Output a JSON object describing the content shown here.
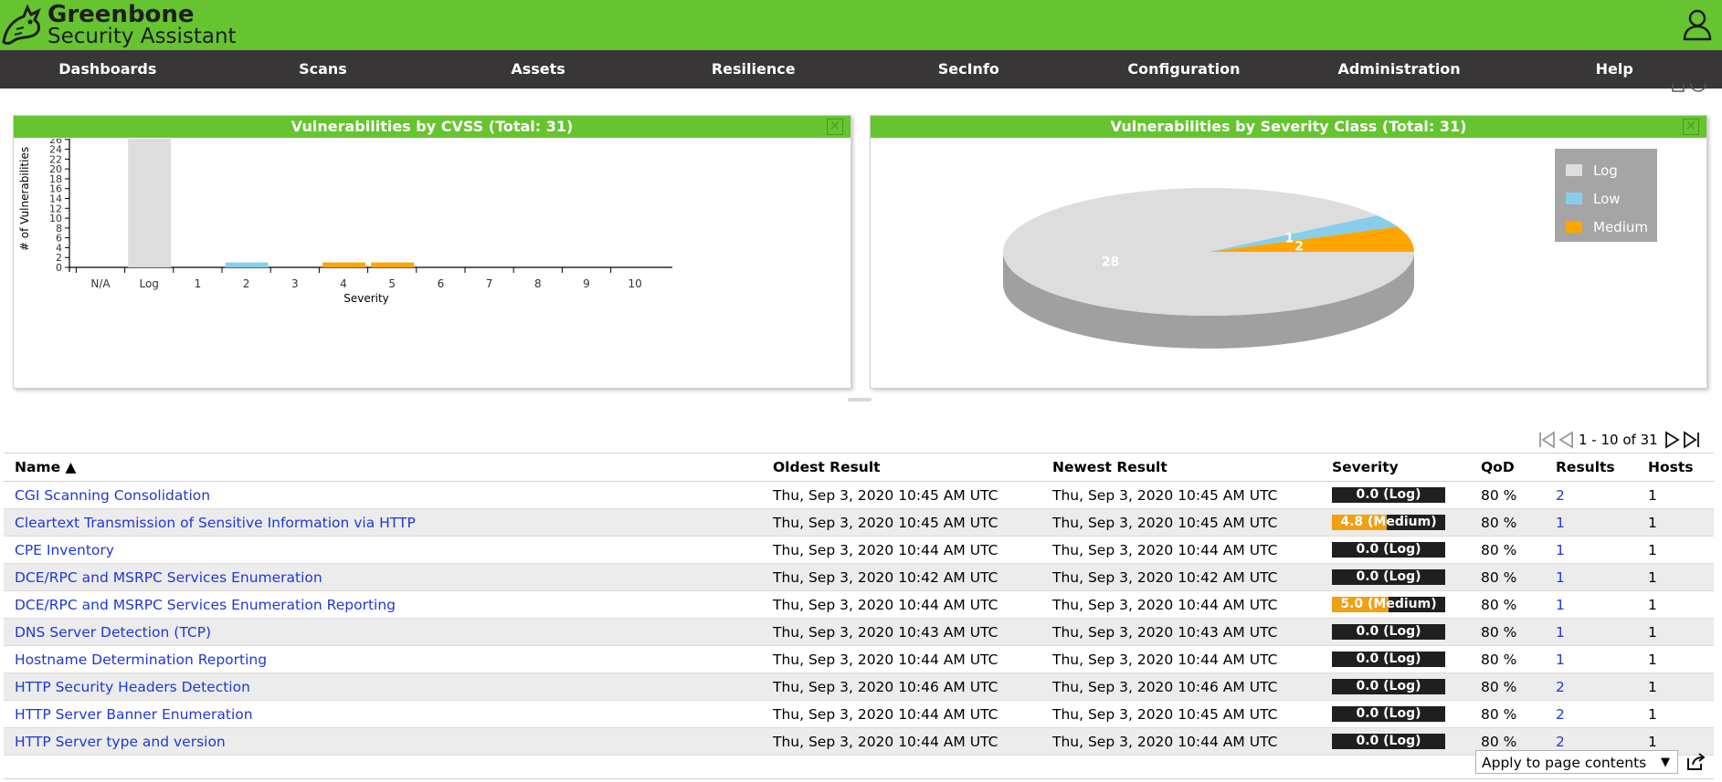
{
  "app": {
    "brand_name": "Greenbone",
    "brand_sub": "Security Assistant"
  },
  "menu": [
    "Dashboards",
    "Scans",
    "Assets",
    "Resilience",
    "SecInfo",
    "Configuration",
    "Administration",
    "Help"
  ],
  "charts": {
    "cvss_title": "Vulnerabilities by CVSS (Total: 31)",
    "pie_title": "Vulnerabilities by Severity Class (Total: 31)"
  },
  "colors": {
    "brand_green": "#66c430",
    "menu_bg": "#393637",
    "log": "#dddddd",
    "low": "#87ceeb",
    "medium": "#ffa500",
    "link": "#1f38d6"
  },
  "chart_data": [
    {
      "type": "bar",
      "title": "Vulnerabilities by CVSS (Total: 31)",
      "xlabel": "Severity",
      "ylabel": "# of Vulnerabilities",
      "categories": [
        "N/A",
        "Log",
        "1",
        "2",
        "3",
        "4",
        "5",
        "6",
        "7",
        "8",
        "9",
        "10"
      ],
      "values": [
        0,
        28,
        0,
        1,
        0,
        1,
        1,
        0,
        0,
        0,
        0,
        0
      ],
      "bar_colors": [
        "#dddddd",
        "#dddddd",
        "#87ceeb",
        "#87ceeb",
        "#87ceeb",
        "#ffa500",
        "#ffa500",
        "#ffa500",
        "#ff0000",
        "#ff0000",
        "#ff0000",
        "#ff0000"
      ],
      "yticks": [
        "0",
        "2",
        "4",
        "6",
        "8",
        "10",
        "12",
        "14",
        "16",
        "18",
        "20",
        "22",
        "24",
        "26",
        "28"
      ],
      "ylim": [
        0,
        28
      ]
    },
    {
      "type": "pie",
      "title": "Vulnerabilities by Severity Class (Total: 31)",
      "slices": [
        {
          "label": "Log",
          "value": 28,
          "color": "#dddddd"
        },
        {
          "label": "Low",
          "value": 1,
          "color": "#87ceeb"
        },
        {
          "label": "Medium",
          "value": 2,
          "color": "#ffa500"
        }
      ],
      "legend": "top-right"
    }
  ],
  "pagination": {
    "text": "1 - 10 of 31"
  },
  "table": {
    "headers": {
      "name": "Name ▲",
      "oldest": "Oldest Result",
      "newest": "Newest Result",
      "severity": "Severity",
      "qod": "QoD",
      "results": "Results",
      "hosts": "Hosts"
    },
    "rows": [
      {
        "name": "CGI Scanning Consolidation",
        "oldest": "Thu, Sep 3, 2020 10:45 AM UTC",
        "newest": "Thu, Sep 3, 2020 10:45 AM UTC",
        "severity": "0.0 (Log)",
        "severity_fraction": 0.0,
        "qod": "80 %",
        "results": "2",
        "hosts": "1"
      },
      {
        "name": "Cleartext Transmission of Sensitive Information via HTTP",
        "oldest": "Thu, Sep 3, 2020 10:45 AM UTC",
        "newest": "Thu, Sep 3, 2020 10:45 AM UTC",
        "severity": "4.8 (Medium)",
        "severity_fraction": 0.48,
        "qod": "80 %",
        "results": "1",
        "hosts": "1"
      },
      {
        "name": "CPE Inventory",
        "oldest": "Thu, Sep 3, 2020 10:44 AM UTC",
        "newest": "Thu, Sep 3, 2020 10:44 AM UTC",
        "severity": "0.0 (Log)",
        "severity_fraction": 0.0,
        "qod": "80 %",
        "results": "1",
        "hosts": "1"
      },
      {
        "name": "DCE/RPC and MSRPC Services Enumeration",
        "oldest": "Thu, Sep 3, 2020 10:42 AM UTC",
        "newest": "Thu, Sep 3, 2020 10:42 AM UTC",
        "severity": "0.0 (Log)",
        "severity_fraction": 0.0,
        "qod": "80 %",
        "results": "1",
        "hosts": "1"
      },
      {
        "name": "DCE/RPC and MSRPC Services Enumeration Reporting",
        "oldest": "Thu, Sep 3, 2020 10:44 AM UTC",
        "newest": "Thu, Sep 3, 2020 10:44 AM UTC",
        "severity": "5.0 (Medium)",
        "severity_fraction": 0.5,
        "qod": "80 %",
        "results": "1",
        "hosts": "1"
      },
      {
        "name": "DNS Server Detection (TCP)",
        "oldest": "Thu, Sep 3, 2020 10:43 AM UTC",
        "newest": "Thu, Sep 3, 2020 10:43 AM UTC",
        "severity": "0.0 (Log)",
        "severity_fraction": 0.0,
        "qod": "80 %",
        "results": "1",
        "hosts": "1"
      },
      {
        "name": "Hostname Determination Reporting",
        "oldest": "Thu, Sep 3, 2020 10:44 AM UTC",
        "newest": "Thu, Sep 3, 2020 10:44 AM UTC",
        "severity": "0.0 (Log)",
        "severity_fraction": 0.0,
        "qod": "80 %",
        "results": "1",
        "hosts": "1"
      },
      {
        "name": "HTTP Security Headers Detection",
        "oldest": "Thu, Sep 3, 2020 10:46 AM UTC",
        "newest": "Thu, Sep 3, 2020 10:46 AM UTC",
        "severity": "0.0 (Log)",
        "severity_fraction": 0.0,
        "qod": "80 %",
        "results": "2",
        "hosts": "1"
      },
      {
        "name": "HTTP Server Banner Enumeration",
        "oldest": "Thu, Sep 3, 2020 10:44 AM UTC",
        "newest": "Thu, Sep 3, 2020 10:45 AM UTC",
        "severity": "0.0 (Log)",
        "severity_fraction": 0.0,
        "qod": "80 %",
        "results": "2",
        "hosts": "1"
      },
      {
        "name": "HTTP Server type and version",
        "oldest": "Thu, Sep 3, 2020 10:44 AM UTC",
        "newest": "Thu, Sep 3, 2020 10:44 AM UTC",
        "severity": "0.0 (Log)",
        "severity_fraction": 0.0,
        "qod": "80 %",
        "results": "2",
        "hosts": "1"
      }
    ]
  },
  "bulk": {
    "action": "Apply to page contents"
  },
  "icons": {
    "logo": "greenbone-dragon-icon",
    "user": "user-icon",
    "first": "first-page-icon",
    "prev": "previous-page-icon",
    "next": "next-page-icon",
    "last": "last-page-icon",
    "close": "close-icon",
    "export": "export-icon"
  }
}
